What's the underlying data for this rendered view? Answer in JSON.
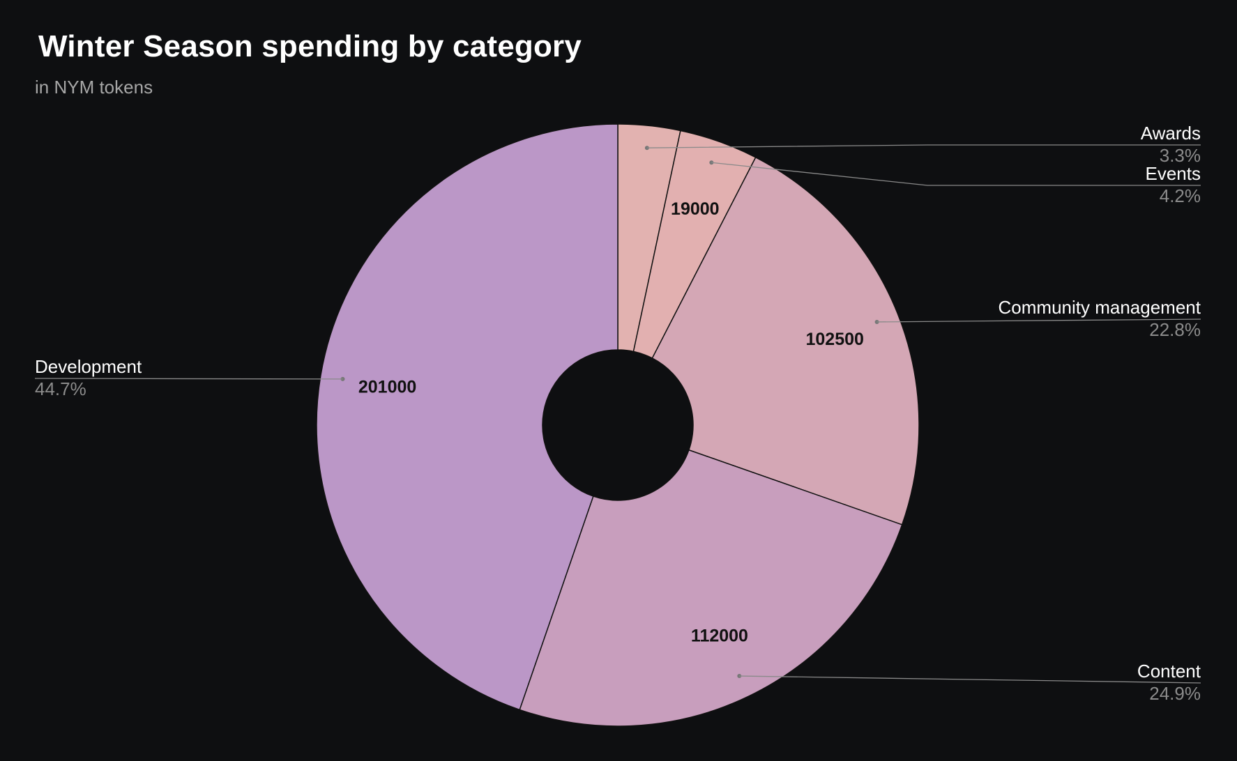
{
  "chart_data": {
    "type": "pie",
    "donut": true,
    "title": "Winter Season spending by category",
    "subtitle": "in NYM tokens",
    "background": "#0e0f11",
    "slices": [
      {
        "label": "Awards",
        "value": 15000,
        "percent_label": "3.3%",
        "show_value": false,
        "color": "#e2b2b0"
      },
      {
        "label": "Events",
        "value": 19000,
        "percent_label": "4.2%",
        "show_value": true,
        "color": "#e2b0b0"
      },
      {
        "label": "Community management",
        "value": 102500,
        "percent_label": "22.8%",
        "show_value": true,
        "color": "#d4a7b5"
      },
      {
        "label": "Content",
        "value": 112000,
        "percent_label": "24.9%",
        "show_value": true,
        "color": "#c89ebd"
      },
      {
        "label": "Development",
        "value": 201000,
        "percent_label": "44.7%",
        "show_value": true,
        "color": "#bb97c7"
      }
    ],
    "legend_placement": "outside-labels",
    "leader_line_color": "#8a8a8a",
    "slice_border_color": "#111111"
  }
}
